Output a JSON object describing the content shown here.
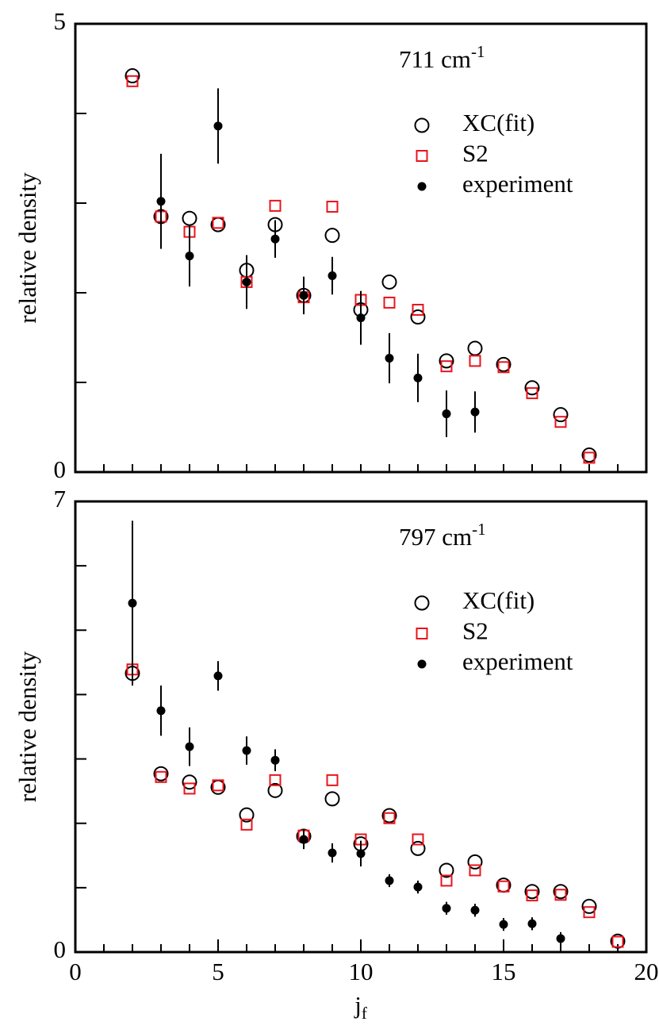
{
  "chart_data": [
    {
      "type": "scatter",
      "annotation": {
        "text": "711 cm",
        "superscript": "-1"
      },
      "ylabel": "relative density",
      "xlim": [
        0,
        20
      ],
      "xminorticks": [
        1,
        2,
        3,
        4,
        5,
        6,
        7,
        8,
        9,
        10,
        11,
        12,
        13,
        14,
        15,
        16,
        17,
        18,
        19
      ],
      "ylim": [
        0,
        5
      ],
      "yticks": [
        0,
        5
      ],
      "yminorticks": [
        1,
        2,
        3,
        4
      ],
      "legend": "upper right",
      "series": [
        {
          "name": "XC(fit)",
          "color": "#000000",
          "marker": "open-circle",
          "x": [
            2,
            3,
            4,
            5,
            6,
            7,
            8,
            9,
            10,
            11,
            12,
            13,
            14,
            15,
            16,
            17,
            18
          ],
          "values": [
            4.42,
            2.85,
            2.83,
            2.76,
            2.25,
            2.76,
            1.97,
            2.64,
            1.81,
            2.12,
            1.73,
            1.24,
            1.38,
            1.2,
            0.94,
            0.64,
            0.19
          ]
        },
        {
          "name": "S2",
          "color": "#e8141b",
          "marker": "open-square",
          "x": [
            2,
            3,
            4,
            5,
            6,
            7,
            8,
            9,
            10,
            11,
            12,
            13,
            14,
            15,
            16,
            17,
            18
          ],
          "values": [
            4.36,
            2.85,
            2.68,
            2.78,
            2.12,
            2.97,
            1.95,
            2.96,
            1.92,
            1.89,
            1.81,
            1.18,
            1.24,
            1.17,
            0.88,
            0.56,
            0.16
          ]
        },
        {
          "name": "experiment",
          "color": "#000000",
          "marker": "filled-circle",
          "x": [
            3,
            4,
            5,
            6,
            7,
            8,
            9,
            10,
            11,
            12,
            13,
            14
          ],
          "values": [
            3.02,
            2.41,
            3.86,
            2.12,
            2.6,
            1.97,
            2.19,
            1.72,
            1.27,
            1.05,
            0.65,
            0.67
          ],
          "errors": [
            0.53,
            0.34,
            0.42,
            0.3,
            0.21,
            0.21,
            0.21,
            0.3,
            0.28,
            0.27,
            0.26,
            0.23
          ]
        }
      ]
    },
    {
      "type": "scatter",
      "annotation": {
        "text": "797 cm",
        "superscript": "-1"
      },
      "ylabel": "relative density",
      "xlabel": {
        "text": "j",
        "subscript": "f"
      },
      "xlim": [
        0,
        20
      ],
      "xticks": [
        0,
        5,
        10,
        15,
        20
      ],
      "xminorticks": [
        1,
        2,
        3,
        4,
        6,
        7,
        8,
        9,
        11,
        12,
        13,
        14,
        16,
        17,
        18,
        19
      ],
      "ylim": [
        0,
        7
      ],
      "yticks": [
        0,
        7
      ],
      "yminorticks": [
        1,
        2,
        3,
        4,
        5,
        6
      ],
      "legend": "upper right",
      "series": [
        {
          "name": "XC(fit)",
          "color": "#000000",
          "marker": "open-circle",
          "x": [
            2,
            3,
            4,
            5,
            6,
            7,
            8,
            9,
            10,
            11,
            12,
            13,
            14,
            15,
            16,
            17,
            18,
            19
          ],
          "values": [
            4.33,
            2.77,
            2.64,
            2.56,
            2.13,
            2.51,
            1.8,
            2.38,
            1.68,
            2.12,
            1.61,
            1.27,
            1.4,
            1.04,
            0.94,
            0.94,
            0.71,
            0.17
          ]
        },
        {
          "name": "S2",
          "color": "#e8141b",
          "marker": "open-square",
          "x": [
            2,
            3,
            4,
            5,
            6,
            7,
            8,
            9,
            10,
            11,
            12,
            13,
            14,
            15,
            16,
            17,
            18,
            19
          ],
          "values": [
            4.39,
            2.72,
            2.54,
            2.59,
            1.98,
            2.67,
            1.81,
            2.67,
            1.75,
            2.08,
            1.75,
            1.11,
            1.27,
            1.02,
            0.88,
            0.89,
            0.62,
            0.16
          ]
        },
        {
          "name": "experiment",
          "color": "#000000",
          "marker": "filled-circle",
          "x": [
            2,
            3,
            4,
            5,
            6,
            7,
            8,
            9,
            10,
            11,
            12,
            13,
            14,
            15,
            16,
            17
          ],
          "values": [
            5.42,
            3.75,
            3.19,
            4.29,
            3.13,
            2.98,
            1.75,
            1.54,
            1.53,
            1.11,
            1.01,
            0.68,
            0.65,
            0.43,
            0.44,
            0.21
          ],
          "errors": [
            1.28,
            0.39,
            0.3,
            0.23,
            0.22,
            0.17,
            0.15,
            0.15,
            0.2,
            0.1,
            0.1,
            0.1,
            0.1,
            0.1,
            0.1,
            0.1
          ]
        }
      ]
    }
  ]
}
